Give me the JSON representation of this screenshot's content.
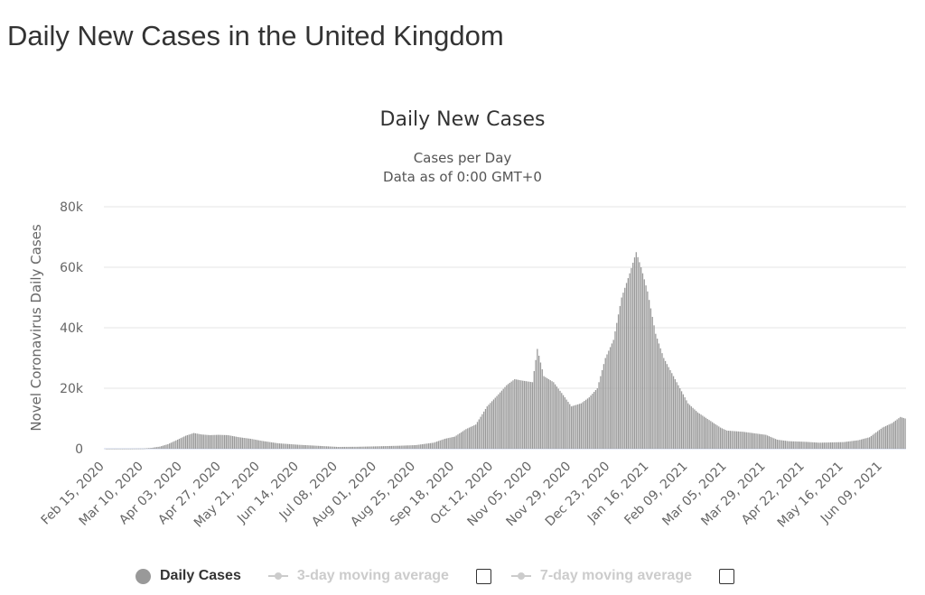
{
  "page": {
    "title": "Daily New Cases in the United Kingdom"
  },
  "legend": {
    "daily_cases": "Daily Cases",
    "ma3": "3-day moving average",
    "ma7": "7-day moving average"
  },
  "colors": {
    "bar": "#999999",
    "grid": "#e6e6e6",
    "text": "#333333",
    "legend_inactive": "#cccccc"
  },
  "chart_data": {
    "type": "bar",
    "title": "Daily New Cases",
    "subtitle_lines": [
      "Cases per Day",
      "Data as of 0:00 GMT+0"
    ],
    "ylabel": "Novel Coronavirus Daily Cases",
    "xlabel": "",
    "ylim": [
      0,
      80000
    ],
    "yticks": [
      0,
      20000,
      40000,
      60000,
      80000
    ],
    "ytick_labels": [
      "0",
      "20k",
      "40k",
      "60k",
      "80k"
    ],
    "x_start": "2020-02-15",
    "x_end": "2021-06-23",
    "xtick_labels": [
      "Feb 15, 2020",
      "Mar 10, 2020",
      "Apr 03, 2020",
      "Apr 27, 2020",
      "May 21, 2020",
      "Jun 14, 2020",
      "Jul 08, 2020",
      "Aug 01, 2020",
      "Aug 25, 2020",
      "Sep 18, 2020",
      "Oct 12, 2020",
      "Nov 05, 2020",
      "Nov 29, 2020",
      "Dec 23, 2020",
      "Jan 16, 2021",
      "Feb 09, 2021",
      "Mar 05, 2021",
      "Mar 29, 2021",
      "Apr 22, 2021",
      "May 16, 2021",
      "Jun 09, 2021"
    ],
    "grid": true,
    "legend_position": "bottom-center",
    "series": [
      {
        "name": "Daily Cases",
        "points": [
          [
            "2020-02-15",
            0
          ],
          [
            "2020-03-01",
            10
          ],
          [
            "2020-03-10",
            60
          ],
          [
            "2020-03-15",
            300
          ],
          [
            "2020-03-20",
            700
          ],
          [
            "2020-03-25",
            1500
          ],
          [
            "2020-03-31",
            3000
          ],
          [
            "2020-04-05",
            4300
          ],
          [
            "2020-04-10",
            5200
          ],
          [
            "2020-04-15",
            4700
          ],
          [
            "2020-04-20",
            4500
          ],
          [
            "2020-04-25",
            4600
          ],
          [
            "2020-05-01",
            4500
          ],
          [
            "2020-05-08",
            3800
          ],
          [
            "2020-05-15",
            3300
          ],
          [
            "2020-05-22",
            2600
          ],
          [
            "2020-06-01",
            1800
          ],
          [
            "2020-06-14",
            1300
          ],
          [
            "2020-06-28",
            900
          ],
          [
            "2020-07-08",
            600
          ],
          [
            "2020-07-20",
            650
          ],
          [
            "2020-08-01",
            800
          ],
          [
            "2020-08-15",
            1000
          ],
          [
            "2020-08-25",
            1200
          ],
          [
            "2020-09-05",
            2000
          ],
          [
            "2020-09-12",
            3300
          ],
          [
            "2020-09-18",
            4000
          ],
          [
            "2020-09-25",
            6500
          ],
          [
            "2020-10-01",
            8000
          ],
          [
            "2020-10-08",
            14000
          ],
          [
            "2020-10-15",
            18000
          ],
          [
            "2020-10-20",
            21000
          ],
          [
            "2020-10-25",
            23000
          ],
          [
            "2020-10-30",
            22500
          ],
          [
            "2020-11-05",
            22000
          ],
          [
            "2020-11-08",
            33000
          ],
          [
            "2020-11-12",
            24000
          ],
          [
            "2020-11-18",
            22000
          ],
          [
            "2020-11-25",
            17000
          ],
          [
            "2020-11-29",
            14000
          ],
          [
            "2020-12-05",
            15000
          ],
          [
            "2020-12-10",
            17000
          ],
          [
            "2020-12-15",
            20000
          ],
          [
            "2020-12-20",
            30000
          ],
          [
            "2020-12-25",
            36000
          ],
          [
            "2020-12-30",
            50000
          ],
          [
            "2021-01-04",
            58000
          ],
          [
            "2021-01-08",
            65000
          ],
          [
            "2021-01-11",
            60000
          ],
          [
            "2021-01-15",
            52000
          ],
          [
            "2021-01-20",
            38000
          ],
          [
            "2021-01-25",
            30000
          ],
          [
            "2021-01-31",
            24000
          ],
          [
            "2021-02-05",
            19000
          ],
          [
            "2021-02-09",
            15000
          ],
          [
            "2021-02-15",
            12000
          ],
          [
            "2021-02-22",
            9500
          ],
          [
            "2021-03-01",
            7000
          ],
          [
            "2021-03-05",
            6000
          ],
          [
            "2021-03-15",
            5600
          ],
          [
            "2021-03-29",
            4600
          ],
          [
            "2021-04-05",
            3000
          ],
          [
            "2021-04-12",
            2500
          ],
          [
            "2021-04-22",
            2300
          ],
          [
            "2021-05-01",
            2000
          ],
          [
            "2021-05-16",
            2200
          ],
          [
            "2021-05-25",
            2800
          ],
          [
            "2021-06-01",
            3800
          ],
          [
            "2021-06-09",
            7000
          ],
          [
            "2021-06-15",
            8500
          ],
          [
            "2021-06-20",
            10500
          ],
          [
            "2021-06-23",
            10000
          ]
        ]
      }
    ]
  }
}
